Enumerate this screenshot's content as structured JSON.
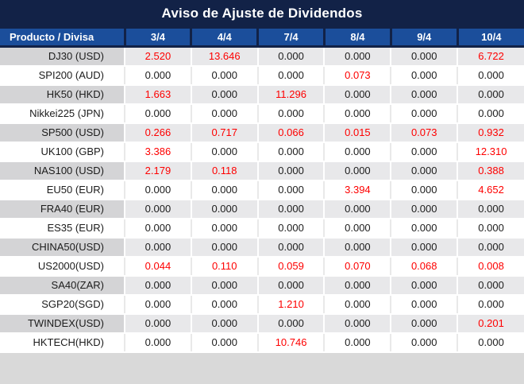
{
  "title": "Aviso de Ajuste de Dividendos",
  "columns": [
    "Producto / Divisa",
    "3/4",
    "4/4",
    "7/4",
    "8/4",
    "9/4",
    "10/4"
  ],
  "colors": {
    "title_bar_bg": "#122247",
    "header_row_bg": "#1b4e9b",
    "stripe_label_bg": "#d4d4d6",
    "stripe_cell_bg": "#e8e8ea",
    "highlight_value": "#fe0000",
    "zero_value": "#1c1c1c"
  },
  "rows": [
    {
      "product": "DJ30 (USD)",
      "values": [
        "2.520",
        "13.646",
        "0.000",
        "0.000",
        "0.000",
        "6.722"
      ]
    },
    {
      "product": "SPI200 (AUD)",
      "values": [
        "0.000",
        "0.000",
        "0.000",
        "0.073",
        "0.000",
        "0.000"
      ]
    },
    {
      "product": "HK50 (HKD)",
      "values": [
        "1.663",
        "0.000",
        "11.296",
        "0.000",
        "0.000",
        "0.000"
      ]
    },
    {
      "product": "Nikkei225 (JPN)",
      "values": [
        "0.000",
        "0.000",
        "0.000",
        "0.000",
        "0.000",
        "0.000"
      ]
    },
    {
      "product": "SP500 (USD)",
      "values": [
        "0.266",
        "0.717",
        "0.066",
        "0.015",
        "0.073",
        "0.932"
      ]
    },
    {
      "product": "UK100 (GBP)",
      "values": [
        "3.386",
        "0.000",
        "0.000",
        "0.000",
        "0.000",
        "12.310"
      ]
    },
    {
      "product": "NAS100 (USD)",
      "values": [
        "2.179",
        "0.118",
        "0.000",
        "0.000",
        "0.000",
        "0.388"
      ]
    },
    {
      "product": "EU50 (EUR)",
      "values": [
        "0.000",
        "0.000",
        "0.000",
        "3.394",
        "0.000",
        "4.652"
      ]
    },
    {
      "product": "FRA40 (EUR)",
      "values": [
        "0.000",
        "0.000",
        "0.000",
        "0.000",
        "0.000",
        "0.000"
      ]
    },
    {
      "product": "ES35 (EUR)",
      "values": [
        "0.000",
        "0.000",
        "0.000",
        "0.000",
        "0.000",
        "0.000"
      ]
    },
    {
      "product": "CHINA50(USD)",
      "values": [
        "0.000",
        "0.000",
        "0.000",
        "0.000",
        "0.000",
        "0.000"
      ]
    },
    {
      "product": "US2000(USD)",
      "values": [
        "0.044",
        "0.110",
        "0.059",
        "0.070",
        "0.068",
        "0.008"
      ]
    },
    {
      "product": "SA40(ZAR)",
      "values": [
        "0.000",
        "0.000",
        "0.000",
        "0.000",
        "0.000",
        "0.000"
      ]
    },
    {
      "product": "SGP20(SGD)",
      "values": [
        "0.000",
        "0.000",
        "1.210",
        "0.000",
        "0.000",
        "0.000"
      ]
    },
    {
      "product": "TWINDEX(USD)",
      "values": [
        "0.000",
        "0.000",
        "0.000",
        "0.000",
        "0.000",
        "0.201"
      ]
    },
    {
      "product": "HKTECH(HKD)",
      "values": [
        "0.000",
        "0.000",
        "10.746",
        "0.000",
        "0.000",
        "0.000"
      ]
    }
  ]
}
